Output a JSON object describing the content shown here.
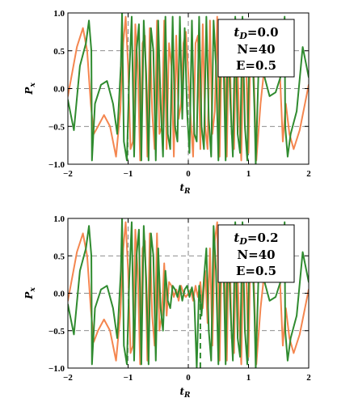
{
  "colors": {
    "series_orange": "#f4864f",
    "series_green": "#2f8b2f",
    "guide_line": "#666666",
    "frame": "#000000"
  },
  "chart_data": [
    {
      "type": "line",
      "xlabel": "t",
      "xlabel_sub": "R",
      "ylabel": "P",
      "ylabel_sub": "x",
      "xlim": [
        -2,
        2
      ],
      "ylim": [
        -1.0,
        1.0
      ],
      "x_ticks": [
        -2,
        -1,
        0,
        1,
        2
      ],
      "y_ticks": [
        -1.0,
        -0.5,
        0.0,
        0.5,
        1.0
      ],
      "x_tick_labels": [
        "−2",
        "−1",
        "0",
        "1",
        "2"
      ],
      "y_tick_labels": [
        "−1.0",
        "−0.5",
        "0.0",
        "0.5",
        "1.0"
      ],
      "dashed_vertical_x": [
        -1,
        0,
        1
      ],
      "dashed_horizontal_y": [
        -0.5,
        0.0,
        0.5
      ],
      "legend": {
        "position": "top-right",
        "line1_main": "t",
        "line1_sub": "D",
        "line1_rest": "=0.0",
        "line2": "N=40",
        "line3": "E=0.5"
      },
      "series": [
        {
          "color_key": "series_orange",
          "x": [
            -2.0,
            -1.85,
            -1.75,
            -1.68,
            -1.62,
            -1.57,
            -1.5,
            -1.4,
            -1.3,
            -1.2,
            -1.13,
            -1.08,
            -1.04,
            -1.0,
            -0.96,
            -0.92,
            -0.88,
            -0.84,
            -0.8,
            -0.76,
            -0.72,
            -0.68,
            -0.64,
            -0.6,
            -0.56,
            -0.52,
            -0.48,
            -0.44,
            -0.4,
            -0.36,
            -0.32,
            -0.28,
            -0.24,
            -0.2,
            -0.16,
            -0.12,
            -0.08,
            -0.04,
            0.0,
            0.04,
            0.08,
            0.12,
            0.16,
            0.2,
            0.24,
            0.28,
            0.32,
            0.36,
            0.4,
            0.44,
            0.48,
            0.52,
            0.56,
            0.6,
            0.64,
            0.68,
            0.72,
            0.76,
            0.8,
            0.84,
            0.88,
            0.92,
            0.96,
            1.0,
            1.04,
            1.08,
            1.13,
            1.2,
            1.3,
            1.4,
            1.5,
            1.57,
            1.62,
            1.68,
            1.75,
            1.85,
            2.0
          ],
          "y": [
            -0.1,
            0.55,
            0.8,
            0.5,
            -0.2,
            -0.6,
            -0.5,
            -0.35,
            -0.5,
            -0.9,
            -0.3,
            0.6,
            0.95,
            0.3,
            -0.8,
            -0.7,
            0.85,
            0.3,
            -0.95,
            0.6,
            0.7,
            -0.9,
            0.8,
            -0.3,
            -0.8,
            0.9,
            -0.6,
            -0.5,
            0.9,
            -0.8,
            0.6,
            0.3,
            -0.9,
            0.7,
            -0.4,
            -0.2,
            0.6,
            0.75,
            0.2,
            -0.4,
            -0.9,
            0.6,
            0.7,
            -0.8,
            0.85,
            -0.5,
            -0.8,
            0.9,
            -0.6,
            -0.3,
            0.95,
            -0.9,
            0.7,
            0.5,
            -0.9,
            0.9,
            -0.6,
            -0.8,
            0.9,
            -0.3,
            -0.95,
            0.7,
            0.3,
            -0.85,
            0.9,
            0.4,
            -0.95,
            -0.2,
            0.55,
            0.85,
            0.6,
            -0.7,
            -0.2,
            -0.6,
            -0.8,
            -0.55,
            0.05
          ]
        },
        {
          "color_key": "series_green",
          "x": [
            -2.0,
            -1.9,
            -1.8,
            -1.7,
            -1.65,
            -1.61,
            -1.6,
            -1.55,
            -1.45,
            -1.35,
            -1.25,
            -1.18,
            -1.12,
            -1.1,
            -1.07,
            -1.02,
            -0.98,
            -0.94,
            -0.9,
            -0.86,
            -0.82,
            -0.78,
            -0.74,
            -0.7,
            -0.66,
            -0.62,
            -0.58,
            -0.54,
            -0.5,
            -0.46,
            -0.42,
            -0.38,
            -0.34,
            -0.3,
            -0.26,
            -0.22,
            -0.18,
            -0.14,
            -0.1,
            -0.06,
            -0.02,
            0.02,
            0.06,
            0.1,
            0.14,
            0.18,
            0.22,
            0.26,
            0.3,
            0.34,
            0.38,
            0.42,
            0.46,
            0.5,
            0.54,
            0.58,
            0.62,
            0.66,
            0.7,
            0.74,
            0.78,
            0.82,
            0.86,
            0.9,
            0.94,
            0.98,
            1.02,
            1.07,
            1.1,
            1.12,
            1.18,
            1.25,
            1.35,
            1.45,
            1.55,
            1.6,
            1.61,
            1.65,
            1.7,
            1.8,
            1.9,
            2.0
          ],
          "y": [
            -0.15,
            -0.55,
            0.3,
            0.6,
            0.9,
            0.5,
            -0.95,
            -0.2,
            0.05,
            0.1,
            -0.2,
            -0.6,
            0.3,
            1.0,
            -0.7,
            -0.95,
            0.2,
            0.95,
            -0.9,
            0.5,
            0.85,
            -0.95,
            0.9,
            0.2,
            -0.95,
            0.8,
            0.5,
            -0.95,
            0.9,
            -0.2,
            -0.9,
            0.95,
            -0.6,
            -0.8,
            0.95,
            -0.5,
            -0.7,
            0.95,
            -0.4,
            0.8,
            -0.3,
            -0.85,
            0.9,
            -0.6,
            -0.7,
            0.95,
            -0.5,
            -0.8,
            0.95,
            -0.4,
            -0.9,
            0.9,
            0.3,
            -0.95,
            0.7,
            0.6,
            -0.95,
            0.9,
            -0.2,
            -0.9,
            0.95,
            -0.6,
            -0.85,
            0.95,
            -0.5,
            -0.95,
            0.9,
            0.4,
            -0.3,
            -1.0,
            0.6,
            0.2,
            -0.1,
            -0.05,
            0.2,
            0.95,
            -0.5,
            -0.9,
            -0.6,
            -0.3,
            0.55,
            0.15
          ]
        }
      ]
    },
    {
      "type": "line",
      "xlabel": "t",
      "xlabel_sub": "R",
      "ylabel": "P",
      "ylabel_sub": "x",
      "xlim": [
        -2,
        2
      ],
      "ylim": [
        -1.0,
        1.0
      ],
      "x_ticks": [
        -2,
        -1,
        0,
        1,
        2
      ],
      "y_ticks": [
        -1.0,
        -0.5,
        0.0,
        0.5,
        1.0
      ],
      "x_tick_labels": [
        "−2",
        "−1",
        "0",
        "1",
        "2"
      ],
      "y_tick_labels": [
        "−1.0",
        "−0.5",
        "0.0",
        "0.5",
        "1.0"
      ],
      "dashed_vertical_x": [
        -1,
        0,
        1
      ],
      "dashed_horizontal_y": [
        -0.5,
        0.0,
        0.5
      ],
      "legend": {
        "position": "top-right",
        "line1_main": "t",
        "line1_sub": "D",
        "line1_rest": "=0.2",
        "line2": "N=40",
        "line3": "E=0.5"
      },
      "series": [
        {
          "color_key": "series_orange",
          "x": [
            -2.0,
            -1.85,
            -1.75,
            -1.68,
            -1.62,
            -1.57,
            -1.5,
            -1.4,
            -1.3,
            -1.2,
            -1.13,
            -1.08,
            -1.04,
            -1.0,
            -0.96,
            -0.92,
            -0.88,
            -0.84,
            -0.8,
            -0.76,
            -0.72,
            -0.68,
            -0.64,
            -0.6,
            -0.56,
            -0.52,
            -0.48,
            -0.44,
            -0.4,
            -0.36,
            -0.32,
            -0.28,
            -0.24,
            -0.2,
            -0.16,
            -0.12,
            -0.08,
            -0.04,
            0.0,
            0.04,
            0.08,
            0.12,
            0.16,
            0.2,
            0.24,
            0.28,
            0.32,
            0.36,
            0.4,
            0.44,
            0.48,
            0.52,
            0.56,
            0.6,
            0.64,
            0.68,
            0.72,
            0.76,
            0.8,
            0.84,
            0.88,
            0.92,
            0.96,
            1.0,
            1.04,
            1.08,
            1.13,
            1.2,
            1.3,
            1.4,
            1.5,
            1.57,
            1.62,
            1.68,
            1.75,
            1.85,
            2.0
          ],
          "y": [
            -0.1,
            0.55,
            0.8,
            0.5,
            -0.2,
            -0.65,
            -0.5,
            -0.35,
            -0.5,
            -0.9,
            -0.3,
            0.6,
            0.95,
            0.3,
            -0.8,
            -0.7,
            0.85,
            0.3,
            -0.95,
            0.6,
            0.7,
            -0.9,
            0.8,
            -0.3,
            -0.7,
            0.8,
            -0.5,
            -0.3,
            0.4,
            -0.3,
            0.15,
            0.1,
            -0.05,
            0.05,
            -0.1,
            0.1,
            0.0,
            -0.05,
            0.0,
            0.05,
            -0.1,
            0.1,
            -0.05,
            0.15,
            -0.2,
            0.3,
            -0.4,
            0.6,
            -0.7,
            0.7,
            0.95,
            -0.9,
            0.7,
            0.5,
            -0.9,
            0.9,
            -0.6,
            -0.8,
            0.9,
            -0.3,
            -0.95,
            0.7,
            0.3,
            -0.85,
            0.9,
            0.4,
            -0.95,
            -0.2,
            0.55,
            0.85,
            0.6,
            -0.7,
            -0.2,
            -0.6,
            -0.8,
            -0.55,
            0.05
          ]
        },
        {
          "color_key": "series_green",
          "x": [
            -2.0,
            -1.9,
            -1.8,
            -1.7,
            -1.65,
            -1.61,
            -1.6,
            -1.55,
            -1.45,
            -1.35,
            -1.25,
            -1.18,
            -1.12,
            -1.1,
            -1.07,
            -1.02,
            -0.98,
            -0.94,
            -0.9,
            -0.86,
            -0.82,
            -0.78,
            -0.74,
            -0.7,
            -0.66,
            -0.62,
            -0.58,
            -0.54,
            -0.5,
            -0.46,
            -0.42,
            -0.38,
            -0.34,
            -0.3,
            -0.26,
            -0.22,
            -0.18,
            -0.14,
            -0.1,
            -0.06,
            -0.02,
            0.02,
            0.06,
            0.1,
            0.14,
            0.18,
            0.22,
            0.26,
            0.3,
            0.34,
            0.38,
            0.42,
            0.46,
            0.5,
            0.54,
            0.58,
            0.62,
            0.66,
            0.7,
            0.74,
            0.78,
            0.82,
            0.86,
            0.9,
            0.94,
            0.98,
            1.02,
            1.07,
            1.1,
            1.12,
            1.18,
            1.25,
            1.35,
            1.45,
            1.55,
            1.6,
            1.61,
            1.65,
            1.7,
            1.8,
            1.9,
            2.0
          ],
          "y": [
            -0.15,
            -0.55,
            0.3,
            0.6,
            0.9,
            0.5,
            -0.95,
            -0.2,
            0.05,
            0.1,
            -0.2,
            -0.6,
            0.3,
            1.0,
            -0.7,
            -0.95,
            0.2,
            0.95,
            -0.9,
            0.5,
            0.85,
            -0.95,
            0.9,
            0.2,
            -0.95,
            0.8,
            0.5,
            -0.9,
            0.6,
            -0.2,
            -0.5,
            0.3,
            -0.1,
            -0.2,
            0.1,
            0.05,
            -0.05,
            0.1,
            -0.1,
            0.05,
            0.1,
            -0.05,
            0.08,
            -0.1,
            -1.0,
            0.1,
            -0.3,
            0.2,
            0.6,
            -0.5,
            -0.9,
            0.9,
            0.3,
            -0.95,
            0.7,
            0.6,
            -0.95,
            0.9,
            -0.2,
            -0.9,
            0.95,
            -0.6,
            -0.85,
            0.95,
            -0.5,
            -0.95,
            0.9,
            0.4,
            -0.3,
            -1.0,
            0.6,
            0.2,
            -0.1,
            -0.05,
            0.2,
            0.95,
            -0.5,
            -0.9,
            -0.6,
            -0.3,
            0.55,
            0.15
          ]
        }
      ],
      "extra_dashed_vertical": [
        {
          "x": 0.2,
          "from_y": -1.0,
          "to_y": 0.0,
          "color_key": "series_green"
        }
      ]
    }
  ]
}
